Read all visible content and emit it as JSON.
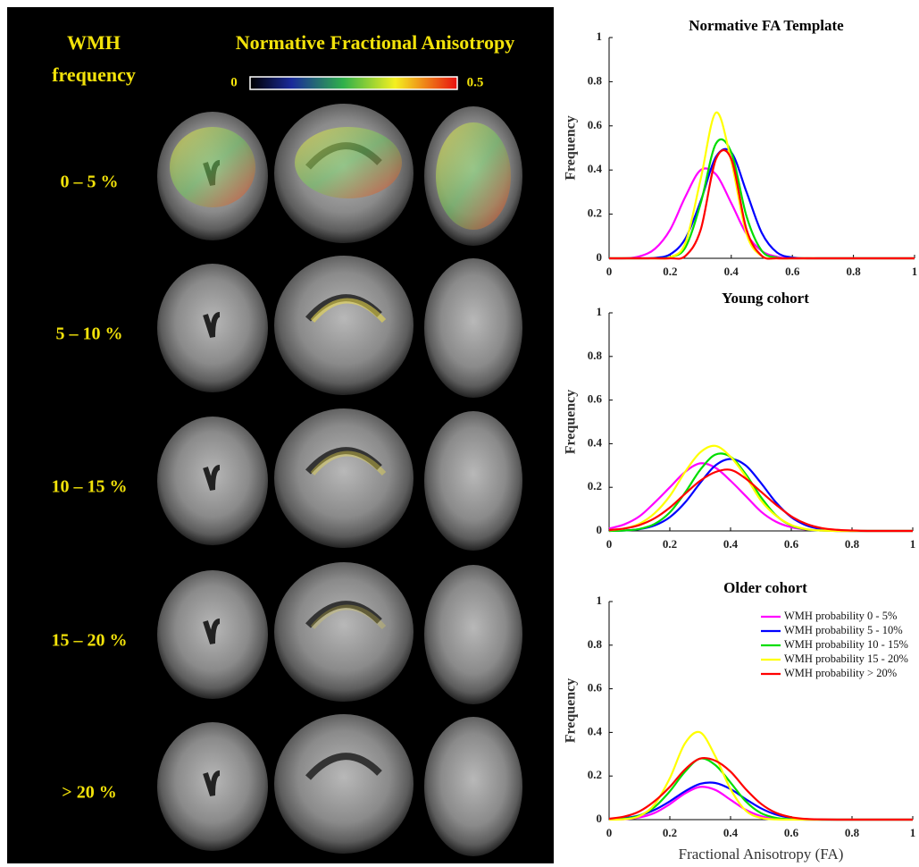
{
  "figure": {
    "row_header": [
      "WMH",
      "frequency"
    ],
    "colorbar_title": "Normative Fractional Anisotropy",
    "colorbar": {
      "min": 0,
      "max": 0.5
    },
    "rows": [
      "0 – 5 %",
      "5 – 10 %",
      "10 – 15 %",
      "15 – 20 %",
      "> 20 %"
    ]
  },
  "chart_data": [
    {
      "type": "line",
      "title": "Normative FA Template",
      "ylabel": "Frequency",
      "x": [
        0,
        0.05,
        0.1,
        0.15,
        0.2,
        0.25,
        0.3,
        0.35,
        0.4,
        0.45,
        0.5,
        0.55,
        0.6,
        0.65,
        0.7,
        0.75,
        0.8,
        0.85,
        0.9,
        0.95,
        1
      ],
      "xlim": [
        0,
        1
      ],
      "ylim": [
        0,
        1
      ],
      "xticks": [
        0,
        0.2,
        0.4,
        0.6,
        0.8,
        1
      ],
      "yticks": [
        0,
        0.2,
        0.4,
        0.6,
        0.8,
        1
      ],
      "series": [
        {
          "color": "#ff00ff",
          "values": [
            0,
            0,
            0.009,
            0.043,
            0.13,
            0.28,
            0.4,
            0.38,
            0.25,
            0.11,
            0.033,
            0.007,
            0,
            0,
            0,
            0,
            0,
            0,
            0,
            0,
            0
          ]
        },
        {
          "color": "#0000ff",
          "values": [
            0,
            0,
            0,
            0.002,
            0.018,
            0.09,
            0.26,
            0.46,
            0.48,
            0.3,
            0.115,
            0.026,
            0.004,
            0,
            0,
            0,
            0,
            0,
            0,
            0,
            0
          ]
        },
        {
          "color": "#00dd00",
          "values": [
            0,
            0,
            0,
            0,
            0.005,
            0.05,
            0.25,
            0.52,
            0.48,
            0.19,
            0.034,
            0.003,
            0,
            0,
            0,
            0,
            0,
            0,
            0,
            0,
            0
          ]
        },
        {
          "color": "#ffff00",
          "values": [
            0,
            0,
            0,
            0,
            0.005,
            0.07,
            0.36,
            0.66,
            0.44,
            0.11,
            0.01,
            0,
            0,
            0,
            0,
            0,
            0,
            0,
            0,
            0,
            0
          ]
        },
        {
          "color": "#ff0000",
          "values": [
            0,
            0,
            0,
            0,
            0,
            0.011,
            0.13,
            0.45,
            0.45,
            0.13,
            0.011,
            0,
            0,
            0,
            0,
            0,
            0,
            0,
            0,
            0,
            0
          ]
        }
      ]
    },
    {
      "type": "line",
      "title": "Young cohort",
      "ylabel": "Frequency",
      "x": [
        0,
        0.05,
        0.1,
        0.15,
        0.2,
        0.25,
        0.3,
        0.35,
        0.4,
        0.45,
        0.5,
        0.55,
        0.6,
        0.65,
        0.7,
        0.75,
        0.8,
        0.85,
        0.9,
        0.95,
        1
      ],
      "xlim": [
        0,
        1
      ],
      "ylim": [
        0,
        1
      ],
      "xticks": [
        0,
        0.2,
        0.4,
        0.6,
        0.8,
        1
      ],
      "yticks": [
        0,
        0.2,
        0.4,
        0.6,
        0.8,
        1
      ],
      "series": [
        {
          "color": "#ff00ff",
          "values": [
            0.011,
            0.03,
            0.067,
            0.13,
            0.2,
            0.27,
            0.31,
            0.29,
            0.23,
            0.16,
            0.089,
            0.042,
            0.017,
            0.006,
            0.002,
            0,
            0,
            0,
            0,
            0,
            0
          ]
        },
        {
          "color": "#0000ff",
          "values": [
            0,
            0.002,
            0.008,
            0.025,
            0.063,
            0.13,
            0.22,
            0.3,
            0.33,
            0.3,
            0.22,
            0.13,
            0.063,
            0.025,
            0.008,
            0.002,
            0,
            0,
            0,
            0,
            0
          ]
        },
        {
          "color": "#00dd00",
          "values": [
            0,
            0.002,
            0.009,
            0.032,
            0.085,
            0.175,
            0.28,
            0.35,
            0.34,
            0.26,
            0.155,
            0.071,
            0.025,
            0.007,
            0.002,
            0,
            0,
            0,
            0,
            0,
            0
          ]
        },
        {
          "color": "#ffff00",
          "values": [
            0.003,
            0.011,
            0.033,
            0.081,
            0.16,
            0.27,
            0.36,
            0.39,
            0.34,
            0.25,
            0.14,
            0.069,
            0.027,
            0.008,
            0.002,
            0,
            0,
            0,
            0,
            0,
            0
          ]
        },
        {
          "color": "#ff0000",
          "values": [
            0.004,
            0.011,
            0.027,
            0.058,
            0.107,
            0.17,
            0.23,
            0.27,
            0.28,
            0.24,
            0.18,
            0.12,
            0.067,
            0.032,
            0.013,
            0.005,
            0.002,
            0,
            0,
            0,
            0
          ]
        }
      ]
    },
    {
      "type": "line",
      "title": "Older cohort",
      "ylabel": "Frequency",
      "xlabel": "Fractional Anisotropy (FA)",
      "legend": "upper right",
      "x": [
        0,
        0.05,
        0.1,
        0.15,
        0.2,
        0.25,
        0.3,
        0.35,
        0.4,
        0.45,
        0.5,
        0.55,
        0.6,
        0.65,
        0.7,
        0.75,
        0.8,
        0.85,
        0.9,
        0.95,
        1
      ],
      "xlim": [
        0,
        1
      ],
      "ylim": [
        0,
        1
      ],
      "xticks": [
        0,
        0.2,
        0.4,
        0.6,
        0.8,
        1
      ],
      "yticks": [
        0,
        0.2,
        0.4,
        0.6,
        0.8,
        1
      ],
      "series": [
        {
          "name": "WMH probability 0 - 5%",
          "color": "#ff00ff",
          "values": [
            0,
            0.002,
            0.01,
            0.031,
            0.071,
            0.12,
            0.15,
            0.136,
            0.091,
            0.045,
            0.016,
            0.004,
            0.001,
            0,
            0,
            0,
            0,
            0,
            0,
            0,
            0
          ]
        },
        {
          "name": "WMH probability 5 - 10%",
          "color": "#0000ff",
          "values": [
            0.002,
            0.007,
            0.019,
            0.045,
            0.084,
            0.13,
            0.164,
            0.168,
            0.14,
            0.094,
            0.052,
            0.023,
            0.008,
            0.002,
            0,
            0,
            0,
            0,
            0,
            0,
            0
          ]
        },
        {
          "name": "WMH probability 10 - 15%",
          "color": "#00dd00",
          "values": [
            0.001,
            0.004,
            0.019,
            0.058,
            0.13,
            0.22,
            0.28,
            0.25,
            0.17,
            0.084,
            0.03,
            0.008,
            0.002,
            0,
            0,
            0,
            0,
            0,
            0,
            0,
            0
          ]
        },
        {
          "name": "WMH probability 15 - 20%",
          "color": "#ffff00",
          "values": [
            0,
            0.002,
            0.016,
            0.07,
            0.19,
            0.35,
            0.4,
            0.29,
            0.14,
            0.041,
            0.008,
            0.001,
            0,
            0,
            0,
            0,
            0,
            0,
            0,
            0,
            0
          ]
        },
        {
          "name": "WMH probability > 20%",
          "color": "#ff0000",
          "values": [
            0.004,
            0.014,
            0.038,
            0.085,
            0.15,
            0.23,
            0.28,
            0.27,
            0.22,
            0.14,
            0.073,
            0.031,
            0.011,
            0.003,
            0.001,
            0,
            0,
            0,
            0,
            0,
            0
          ]
        }
      ]
    }
  ]
}
